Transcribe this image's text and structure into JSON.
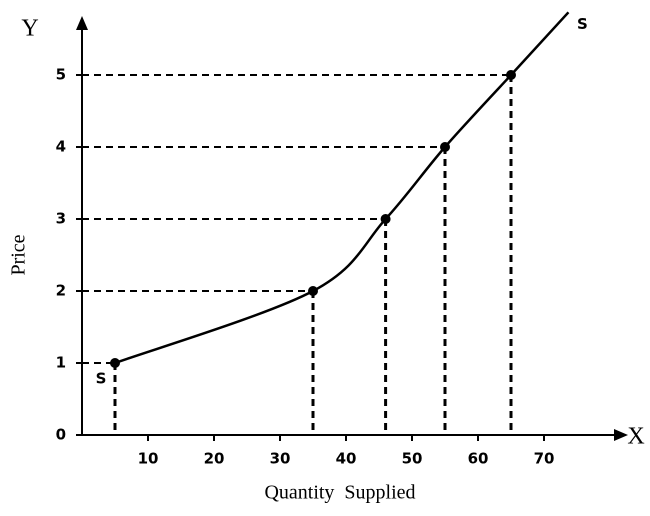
{
  "chart_data": {
    "type": "line",
    "y_axis_letter": "Y",
    "x_axis_letter": "X",
    "ylabel": "Price",
    "xlabel": "Quantity  Supplied",
    "curve_start_label": "S",
    "curve_end_label": "S",
    "x": [
      5,
      35,
      46,
      55,
      65
    ],
    "series": [
      {
        "color": "#000000",
        "values": [
          1,
          2,
          3,
          4,
          5
        ]
      }
    ],
    "xlim": [
      0,
      80
    ],
    "ylim": [
      0,
      5.8
    ],
    "xticks": [
      10,
      20,
      30,
      40,
      50,
      60,
      70
    ],
    "yticks": [
      0,
      1,
      2,
      3,
      4,
      5
    ]
  }
}
